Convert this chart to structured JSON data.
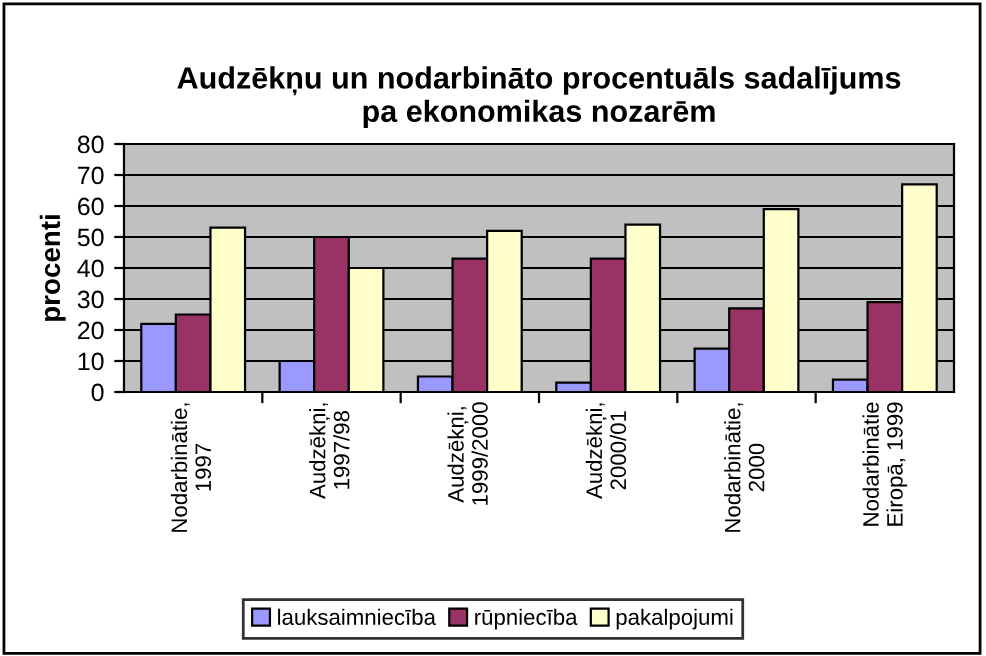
{
  "chart_data": {
    "type": "bar",
    "title": "Audzēkņu un nodarbināto procentuāls sadalījums\npa ekonomikas nozarēm",
    "ylabel": "procenti",
    "categories": [
      "Nodarbinātie,\n1997",
      "Audzēkņi,\n1997/98",
      "Audzēkņi,\n1999/2000",
      "Audzēkņi,\n2000/01",
      "Nodarbinātie,\n2000",
      "Nodarbinātie\nEiropā, 1999"
    ],
    "series": [
      {
        "name": "lauksaimniecība",
        "color": "#9999ff",
        "values": [
          22,
          10,
          5,
          3,
          14,
          4
        ]
      },
      {
        "name": "rūpniecība",
        "color": "#993366",
        "values": [
          25,
          50,
          43,
          43,
          27,
          29
        ]
      },
      {
        "name": "pakalpojumi",
        "color": "#ffffcc",
        "values": [
          53,
          40,
          52,
          54,
          59,
          67
        ]
      }
    ],
    "ylim": [
      0,
      80
    ],
    "yticks": [
      0,
      10,
      20,
      30,
      40,
      50,
      60,
      70,
      80
    ],
    "grid": "y",
    "legend": "bottom"
  }
}
